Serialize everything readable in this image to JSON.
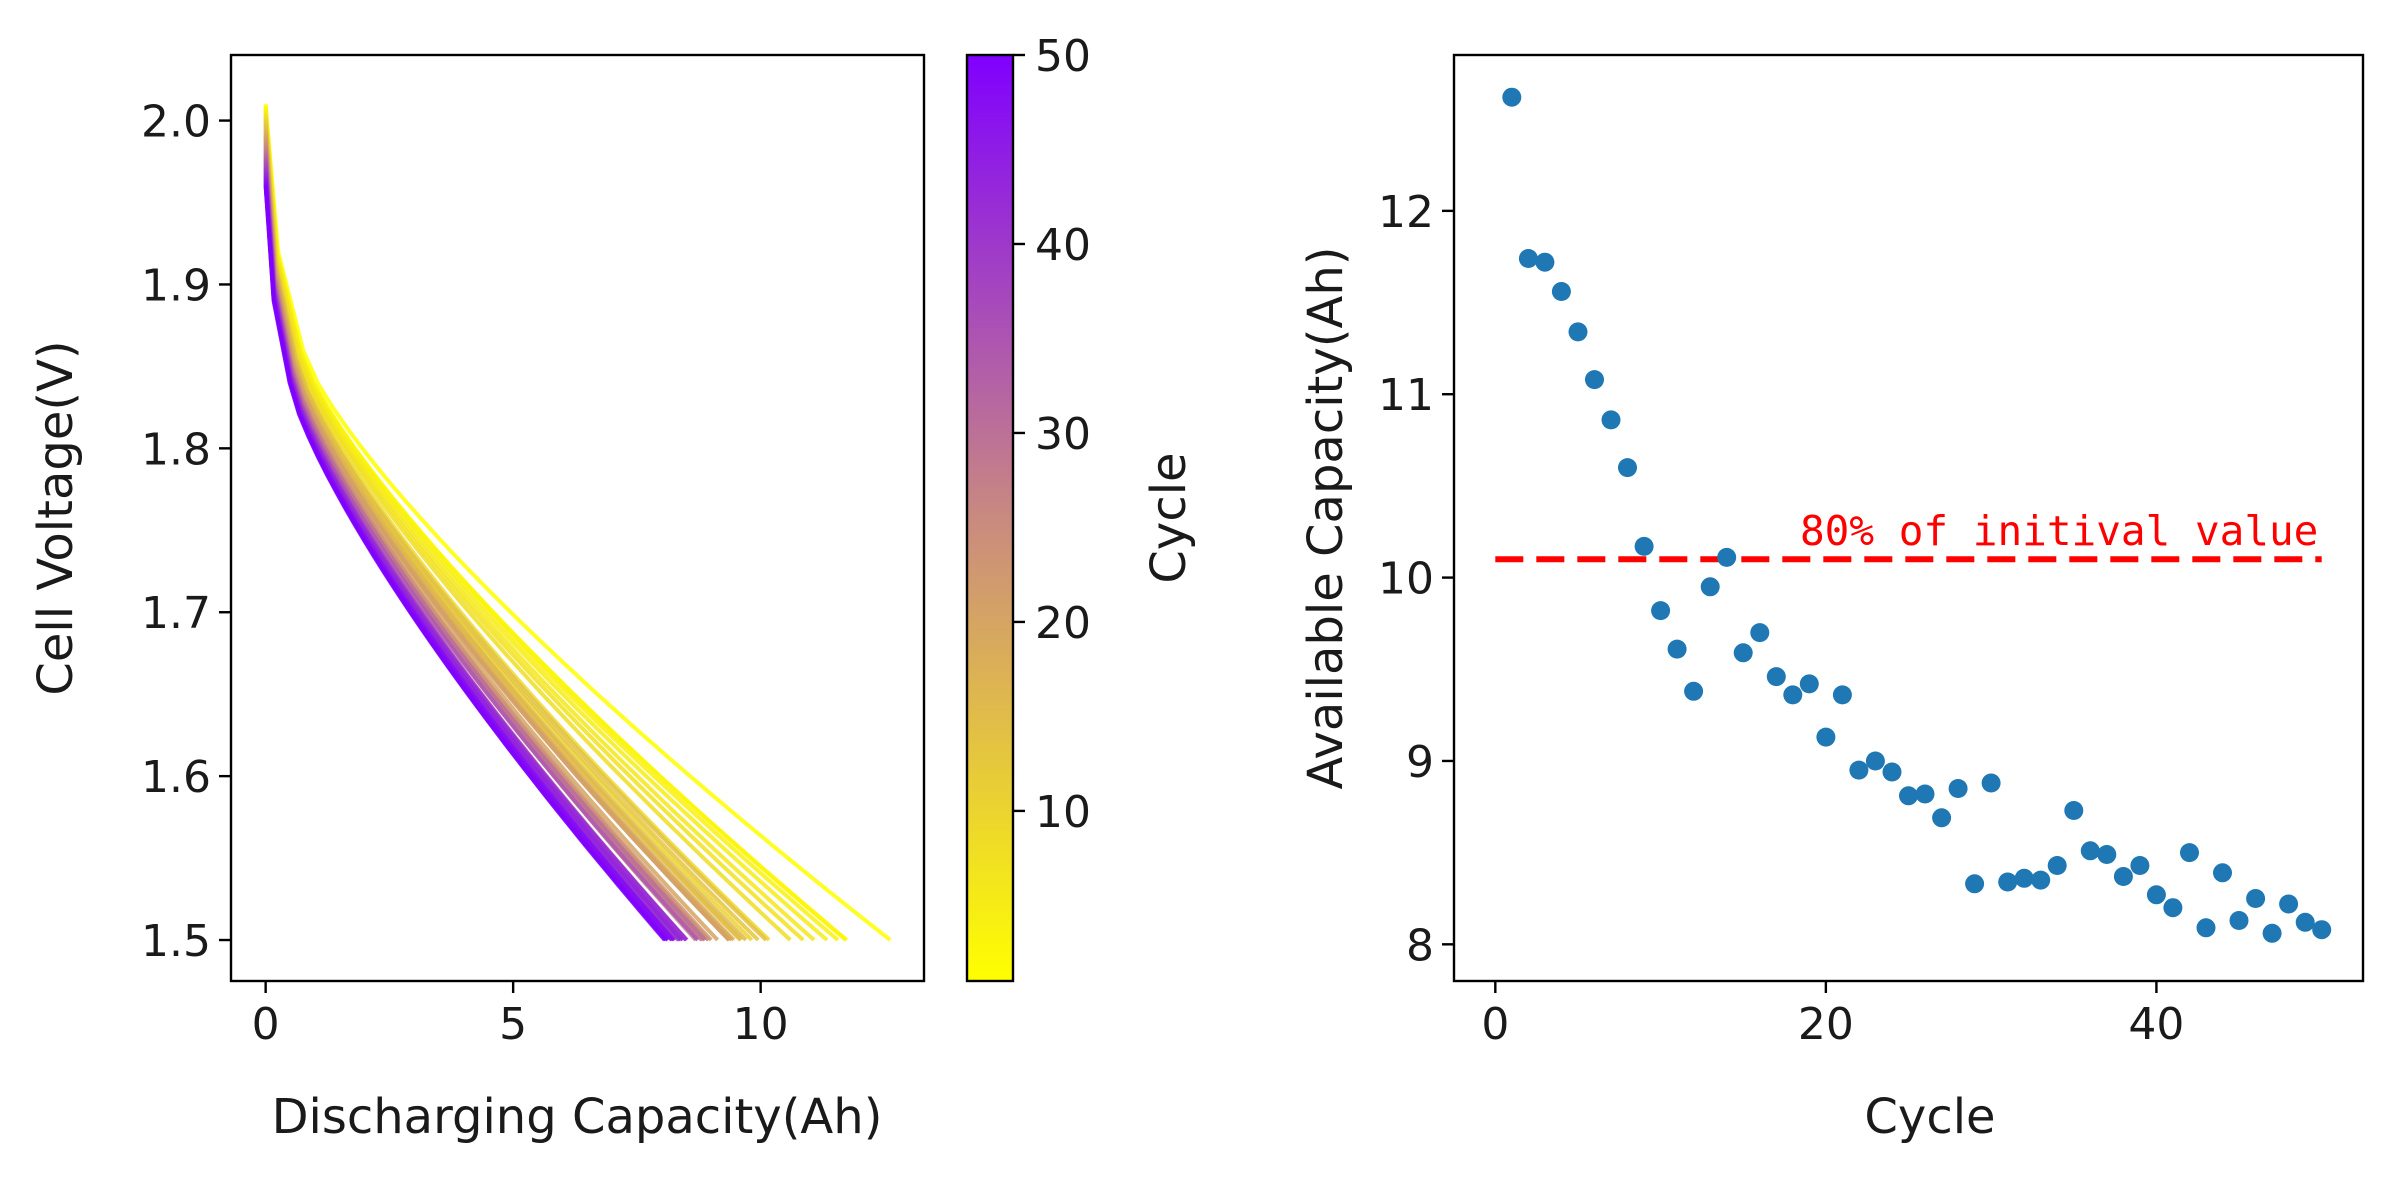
{
  "chart_data": [
    {
      "type": "line",
      "title": "",
      "xlabel": "Discharging Capacity(Ah)",
      "ylabel": "Cell Voltage(V)",
      "xlim": [
        -0.7,
        13.3
      ],
      "ylim": [
        1.475,
        2.04
      ],
      "xticks": [
        "0",
        "5",
        "10"
      ],
      "xtick_values": [
        0,
        5,
        10
      ],
      "yticks": [
        "1.5",
        "1.6",
        "1.7",
        "1.8",
        "1.9",
        "2.0"
      ],
      "ytick_values": [
        1.5,
        1.6,
        1.7,
        1.8,
        1.9,
        2.0
      ],
      "series_count": 50,
      "end_capacity_per_cycle": [
        12.62,
        11.74,
        11.72,
        11.56,
        11.34,
        11.08,
        10.86,
        10.6,
        10.17,
        9.82,
        9.61,
        9.38,
        9.95,
        10.11,
        9.59,
        9.7,
        9.46,
        9.36,
        9.42,
        9.13,
        9.36,
        8.95,
        9.0,
        8.94,
        8.81,
        8.82,
        8.69,
        8.85,
        8.33,
        8.88,
        8.34,
        8.36,
        8.35,
        8.43,
        8.73,
        8.51,
        8.49,
        8.37,
        8.43,
        8.27,
        8.2,
        8.5,
        8.09,
        8.39,
        8.13,
        8.25,
        8.06,
        8.22,
        8.12,
        8.08
      ],
      "start_voltage_range": [
        1.96,
        2.01
      ],
      "end_voltage": 1.5,
      "colorbar": {
        "label": "Cycle",
        "ticks": [
          "10",
          "20",
          "30",
          "40",
          "50"
        ],
        "tick_values": [
          10,
          20,
          30,
          40,
          50
        ],
        "range": [
          1,
          50
        ],
        "color_low": "#ffff00",
        "color_mid": "#c98a80",
        "color_high": "#8000ff"
      }
    },
    {
      "type": "scatter",
      "title": "",
      "xlabel": "Cycle",
      "ylabel": "Available Capacity(Ah)",
      "xlim": [
        -2.5,
        52.5
      ],
      "ylim": [
        7.8,
        12.85
      ],
      "xticks": [
        "0",
        "20",
        "40"
      ],
      "xtick_values": [
        0,
        20,
        40
      ],
      "yticks": [
        "8",
        "9",
        "10",
        "11",
        "12"
      ],
      "ytick_values": [
        8,
        9,
        10,
        11,
        12
      ],
      "marker_color": "#1f77b4",
      "x": [
        1,
        2,
        3,
        4,
        5,
        6,
        7,
        8,
        9,
        10,
        11,
        12,
        13,
        14,
        15,
        16,
        17,
        18,
        19,
        20,
        21,
        22,
        23,
        24,
        25,
        26,
        27,
        28,
        29,
        30,
        31,
        32,
        33,
        34,
        35,
        36,
        37,
        38,
        39,
        40,
        41,
        42,
        43,
        44,
        45,
        46,
        47,
        48,
        49,
        50
      ],
      "y": [
        12.62,
        11.74,
        11.72,
        11.56,
        11.34,
        11.08,
        10.86,
        10.6,
        10.17,
        9.82,
        9.61,
        9.38,
        9.95,
        10.11,
        9.59,
        9.7,
        9.46,
        9.36,
        9.42,
        9.13,
        9.36,
        8.95,
        9.0,
        8.94,
        8.81,
        8.82,
        8.69,
        8.85,
        8.33,
        8.88,
        8.34,
        8.36,
        8.35,
        8.43,
        8.73,
        8.51,
        8.49,
        8.37,
        8.43,
        8.27,
        8.2,
        8.5,
        8.09,
        8.39,
        8.13,
        8.25,
        8.06,
        8.22,
        8.12,
        8.08
      ],
      "threshold": {
        "value": 10.1,
        "x_range": [
          0,
          50
        ],
        "label": "80% of initival value",
        "color": "#ff0000",
        "style": "dashed"
      }
    }
  ]
}
